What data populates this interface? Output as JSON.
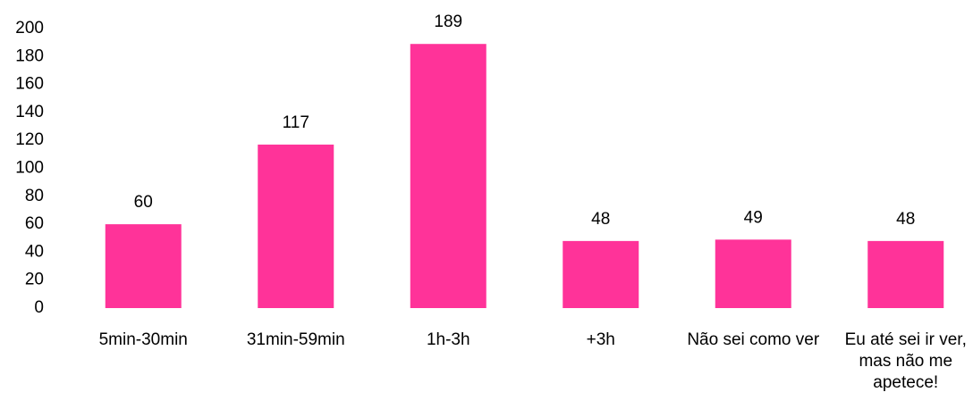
{
  "chart_data": {
    "type": "bar",
    "categories": [
      "5min-30min",
      "31min-59min",
      "1h-3h",
      "+3h",
      "Não sei como ver",
      "Eu até sei ir ver, mas não me apetece!"
    ],
    "values": [
      60,
      117,
      189,
      48,
      49,
      48
    ],
    "color": "#ff3399",
    "ylim": [
      0,
      200
    ],
    "yticks": [
      0,
      20,
      40,
      60,
      80,
      100,
      120,
      140,
      160,
      180,
      200
    ],
    "grid": false
  }
}
